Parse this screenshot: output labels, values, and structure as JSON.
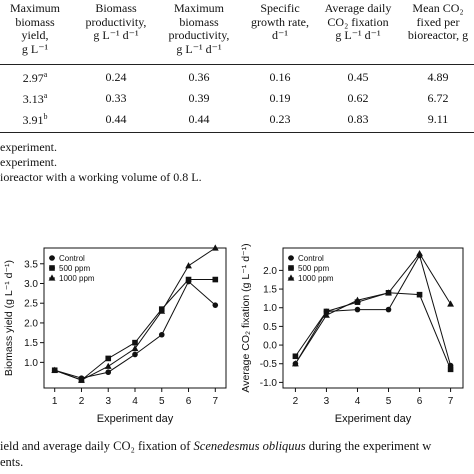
{
  "table": {
    "headers": [
      {
        "lines": [
          "Maximum",
          "biomass",
          "yield,",
          "g L⁻¹"
        ]
      },
      {
        "lines": [
          "Biomass",
          "productivity,",
          "g L⁻¹ d⁻¹"
        ]
      },
      {
        "lines": [
          "Maximum",
          "biomass",
          "productivity,",
          "g L⁻¹ d⁻¹"
        ]
      },
      {
        "lines": [
          "Specific",
          "growth rate,",
          "d⁻¹"
        ]
      },
      {
        "lines": [
          "Average daily",
          "CO₂ fixation",
          "g L⁻¹ d⁻¹"
        ]
      },
      {
        "lines": [
          "Mean CO₂",
          "fixed per",
          "bioreactor, g"
        ]
      }
    ],
    "rows": [
      {
        "cells": [
          "2.97",
          "0.24",
          "0.36",
          "0.16",
          "0.45",
          "4.89"
        ],
        "sup": "a"
      },
      {
        "cells": [
          "3.13",
          "0.33",
          "0.39",
          "0.19",
          "0.62",
          "6.72"
        ],
        "sup": "a"
      },
      {
        "cells": [
          "3.91",
          "0.44",
          "0.44",
          "0.23",
          "0.83",
          "9.11"
        ],
        "sup": "b"
      }
    ]
  },
  "notes": [
    "experiment.",
    "experiment.",
    "ioreactor with a working volume of 0.8 L."
  ],
  "charts": [
    {
      "ylabel": "Biomass yield (g L⁻¹ d⁻¹)",
      "xlabel": "Experiment day",
      "legend": [
        "Control",
        "500 ppm",
        "1000 ppm"
      ]
    },
    {
      "ylabel": "Average CO₂ fixation (g L⁻¹ d⁻¹)",
      "xlabel": "Experiment day",
      "legend": [
        "Control",
        "500 ppm",
        "1000 ppm"
      ]
    }
  ],
  "chart_data": [
    {
      "type": "line",
      "xlabel": "Experiment day",
      "ylabel": "Biomass yield (g L⁻¹ d⁻¹)",
      "x": [
        1,
        2,
        3,
        4,
        5,
        6,
        7
      ],
      "xticks": [
        "1",
        "2",
        "3",
        "4",
        "5",
        "6",
        "7"
      ],
      "yticks": [
        "1.0",
        "1.5",
        "2.0",
        "2.5",
        "3.0",
        "3.5"
      ],
      "ylim": [
        0.35,
        3.9
      ],
      "xlim": [
        0.6,
        7.4
      ],
      "legend_position": "top-left",
      "series": [
        {
          "name": "Control",
          "marker": "circle",
          "values": [
            0.8,
            0.6,
            0.75,
            1.2,
            1.7,
            3.05,
            2.45
          ]
        },
        {
          "name": "500 ppm",
          "marker": "square",
          "values": [
            0.8,
            0.55,
            1.1,
            1.5,
            2.35,
            3.1,
            3.1
          ]
        },
        {
          "name": "1000 ppm",
          "marker": "triangle",
          "values": [
            0.8,
            0.55,
            0.9,
            1.35,
            2.3,
            3.45,
            3.9
          ]
        }
      ]
    },
    {
      "type": "line",
      "xlabel": "Experiment day",
      "ylabel": "Average CO₂ fixation (g L⁻¹ d⁻¹)",
      "x": [
        2,
        3,
        4,
        5,
        6,
        7
      ],
      "xticks": [
        "2",
        "3",
        "4",
        "5",
        "6",
        "7"
      ],
      "yticks": [
        "-1.0",
        "-0.5",
        "0.0",
        "0.5",
        "1.0",
        "1.5",
        "2.0"
      ],
      "ylim": [
        -1.15,
        2.6
      ],
      "xlim": [
        1.6,
        7.4
      ],
      "legend_position": "top-left",
      "series": [
        {
          "name": "Control",
          "marker": "circle",
          "values": [
            -0.5,
            0.9,
            0.95,
            0.95,
            2.4,
            -0.55
          ]
        },
        {
          "name": "500 ppm",
          "marker": "square",
          "values": [
            -0.3,
            0.9,
            1.15,
            1.4,
            1.35,
            -0.65
          ]
        },
        {
          "name": "1000 ppm",
          "marker": "triangle",
          "values": [
            -0.5,
            0.8,
            1.2,
            1.4,
            2.45,
            1.1
          ]
        }
      ]
    }
  ],
  "caption": {
    "line1_prefix": "ield and average daily CO₂ fixation of ",
    "species": "Scenedesmus obliquus",
    "line1_suffix": " during the experiment w",
    "line2": "ents."
  }
}
